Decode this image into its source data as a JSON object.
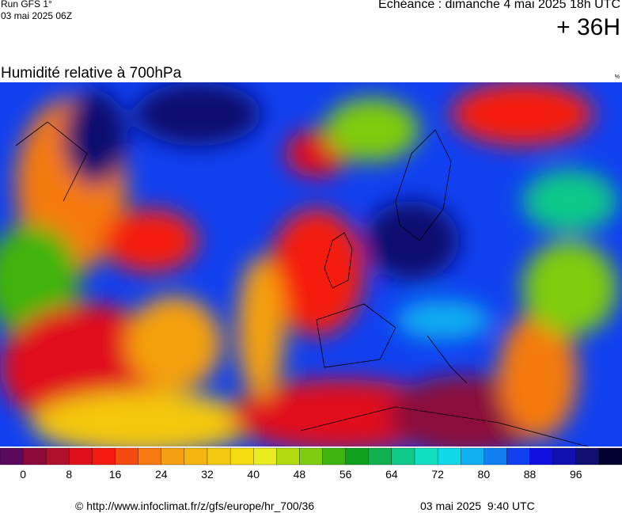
{
  "header": {
    "run": "Run GFS 1°",
    "run_date": "03 mai 2025 06Z",
    "valid_time": "Echéance : dimanche 4 mai 2025 18h UTC",
    "lead": "+ 36H"
  },
  "map": {
    "title": "Humidité relative à 700hPa",
    "unit": "%"
  },
  "scale": {
    "colors": [
      "#5a0a5a",
      "#8b0a3a",
      "#b0102a",
      "#e0101a",
      "#f51a10",
      "#f54a10",
      "#f57a10",
      "#f5a010",
      "#f5b510",
      "#f5c810",
      "#f5dc10",
      "#e8ec20",
      "#b0dc10",
      "#80cc10",
      "#40b410",
      "#10a020",
      "#10b050",
      "#10c888",
      "#10e0c0",
      "#10d8e8",
      "#10b0f0",
      "#1080f0",
      "#1040f0",
      "#1010e0",
      "#1010b0",
      "#101070",
      "#000030"
    ],
    "labels": [
      0,
      8,
      16,
      24,
      32,
      40,
      48,
      56,
      64,
      72,
      80,
      88,
      96
    ]
  },
  "footer": {
    "source": "© http://www.infoclimat.fr/z/gfs/europe/hr_700/36",
    "generated": "03 mai 2025  9:40 UTC"
  }
}
